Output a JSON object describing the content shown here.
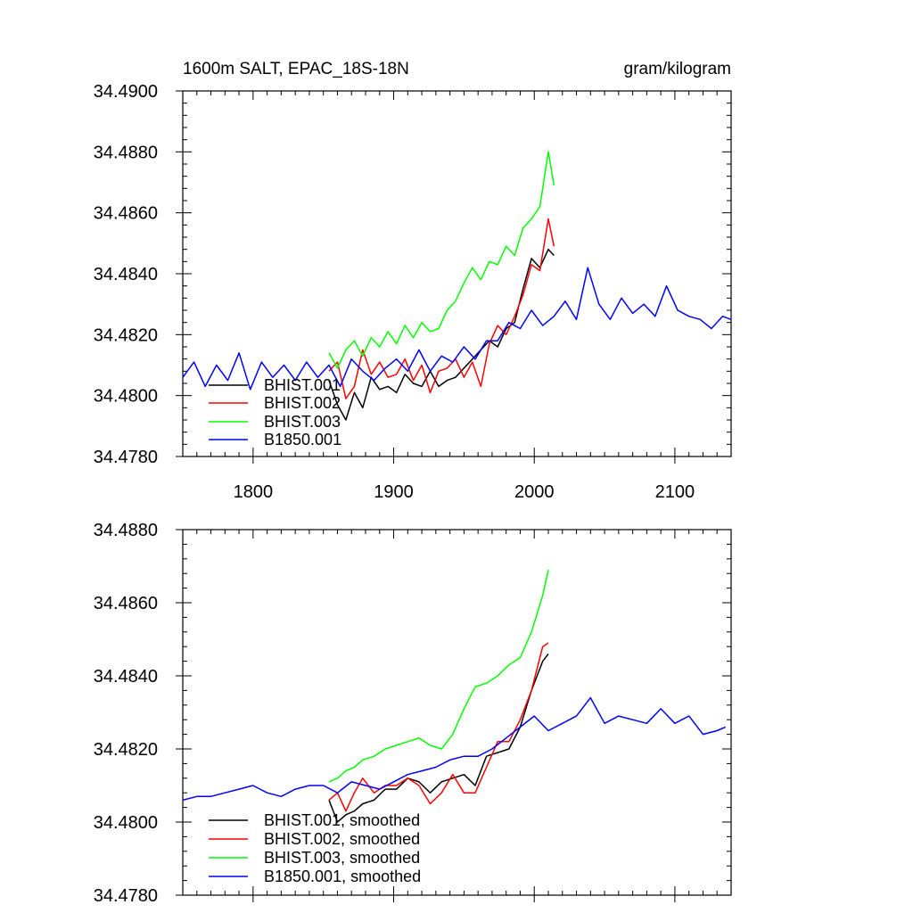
{
  "chart_data": [
    {
      "type": "line",
      "title": "1600m SALT, EPAC_18S-18N",
      "units": "gram/kilogram",
      "xlim": [
        1750,
        2140
      ],
      "ylim": [
        34.478,
        34.49
      ],
      "x_ticks": [
        1800,
        1900,
        2000,
        2100
      ],
      "x_tick_labels": [
        "1800",
        "1900",
        "2000",
        "2100"
      ],
      "y_ticks": [
        34.478,
        34.48,
        34.482,
        34.484,
        34.486,
        34.488,
        34.49
      ],
      "y_tick_labels": [
        "34.4780",
        "34.4800",
        "34.4820",
        "34.4840",
        "34.4860",
        "34.4880",
        "34.4900"
      ],
      "legend_position": "bottom-left",
      "series": [
        {
          "name": "BHIST.001",
          "color": "#000000",
          "x": [
            1854,
            1860,
            1866,
            1872,
            1878,
            1884,
            1890,
            1896,
            1902,
            1908,
            1914,
            1920,
            1926,
            1932,
            1938,
            1944,
            1950,
            1956,
            1962,
            1968,
            1974,
            1980,
            1986,
            1992,
            1998,
            2004,
            2010,
            2014
          ],
          "y": [
            34.4805,
            34.4797,
            34.4792,
            34.4801,
            34.4796,
            34.4806,
            34.4802,
            34.4803,
            34.4801,
            34.4807,
            34.4804,
            34.4803,
            34.4808,
            34.4803,
            34.4805,
            34.4806,
            34.4809,
            34.4812,
            34.4815,
            34.4818,
            34.4816,
            34.4822,
            34.4824,
            34.4835,
            34.4845,
            34.4842,
            34.4848,
            34.4846
          ]
        },
        {
          "name": "BHIST.002",
          "color": "#ff0000",
          "x": [
            1854,
            1860,
            1866,
            1872,
            1878,
            1884,
            1890,
            1896,
            1902,
            1908,
            1914,
            1920,
            1926,
            1932,
            1938,
            1944,
            1950,
            1956,
            1962,
            1968,
            1974,
            1980,
            1986,
            1992,
            1998,
            2004,
            2010,
            2014
          ],
          "y": [
            34.4808,
            34.4811,
            34.4799,
            34.4803,
            34.4815,
            34.4807,
            34.4811,
            34.4806,
            34.4807,
            34.4812,
            34.4805,
            34.481,
            34.4801,
            34.4808,
            34.4809,
            34.4812,
            34.4806,
            34.4811,
            34.4803,
            34.4817,
            34.4823,
            34.482,
            34.4826,
            34.4833,
            34.4843,
            34.4841,
            34.4858,
            34.4849
          ]
        },
        {
          "name": "BHIST.003",
          "color": "#00ff00",
          "x": [
            1854,
            1860,
            1866,
            1872,
            1878,
            1884,
            1890,
            1896,
            1902,
            1908,
            1914,
            1920,
            1926,
            1932,
            1938,
            1944,
            1950,
            1956,
            1962,
            1968,
            1974,
            1980,
            1986,
            1992,
            1998,
            2004,
            2010,
            2014
          ],
          "y": [
            34.4814,
            34.4809,
            34.4815,
            34.4818,
            34.4813,
            34.4819,
            34.4816,
            34.4821,
            34.4817,
            34.4823,
            34.4819,
            34.4824,
            34.4821,
            34.4822,
            34.4828,
            34.4831,
            34.4837,
            34.4842,
            34.4838,
            34.4844,
            34.4843,
            34.4849,
            34.4846,
            34.4855,
            34.4858,
            34.4862,
            34.488,
            34.4869
          ]
        },
        {
          "name": "B1850.001",
          "color": "#0000ff",
          "x": [
            1750,
            1758,
            1766,
            1774,
            1782,
            1790,
            1798,
            1806,
            1814,
            1822,
            1830,
            1838,
            1846,
            1854,
            1862,
            1870,
            1878,
            1886,
            1894,
            1902,
            1910,
            1918,
            1926,
            1934,
            1942,
            1950,
            1958,
            1966,
            1974,
            1982,
            1990,
            1998,
            2006,
            2014,
            2022,
            2030,
            2038,
            2046,
            2054,
            2062,
            2070,
            2078,
            2086,
            2094,
            2102,
            2110,
            2118,
            2126,
            2134,
            2140
          ],
          "y": [
            34.4806,
            34.4811,
            34.4803,
            34.481,
            34.4805,
            34.4814,
            34.4802,
            34.4811,
            34.4806,
            34.481,
            34.4805,
            34.4811,
            34.4806,
            34.481,
            34.4803,
            34.4812,
            34.4808,
            34.4805,
            34.4809,
            34.4812,
            34.4808,
            34.4815,
            34.4808,
            34.4813,
            34.4811,
            34.4816,
            34.4812,
            34.4818,
            34.4818,
            34.4824,
            34.4822,
            34.4828,
            34.4823,
            34.4826,
            34.4831,
            34.4825,
            34.4842,
            34.483,
            34.4825,
            34.4832,
            34.4827,
            34.483,
            34.4826,
            34.4836,
            34.4828,
            34.4826,
            34.4825,
            34.4822,
            34.4826,
            34.4825
          ]
        }
      ]
    },
    {
      "type": "line",
      "xlim": [
        1750,
        2140
      ],
      "ylim": [
        34.478,
        34.488
      ],
      "x_ticks": [
        1800,
        1900,
        2000,
        2100
      ],
      "y_ticks": [
        34.478,
        34.48,
        34.482,
        34.484,
        34.486,
        34.488
      ],
      "y_tick_labels": [
        "34.4780",
        "34.4800",
        "34.4820",
        "34.4840",
        "34.4860",
        "34.4880"
      ],
      "legend_position": "bottom-left",
      "series": [
        {
          "name": "BHIST.001, smoothed",
          "color": "#000000",
          "x": [
            1854,
            1860,
            1866,
            1872,
            1878,
            1886,
            1894,
            1902,
            1910,
            1918,
            1926,
            1934,
            1942,
            1950,
            1958,
            1966,
            1974,
            1982,
            1990,
            1998,
            2006,
            2010
          ],
          "y": [
            34.4806,
            34.48,
            34.4802,
            34.4803,
            34.4805,
            34.4806,
            34.4809,
            34.4809,
            34.4812,
            34.4811,
            34.4808,
            34.4811,
            34.4812,
            34.4813,
            34.481,
            34.4818,
            34.4819,
            34.482,
            34.4826,
            34.4836,
            34.4844,
            34.4846
          ]
        },
        {
          "name": "BHIST.002, smoothed",
          "color": "#ff0000",
          "x": [
            1854,
            1860,
            1866,
            1872,
            1878,
            1886,
            1894,
            1902,
            1910,
            1918,
            1926,
            1934,
            1942,
            1950,
            1958,
            1966,
            1974,
            1982,
            1990,
            1998,
            2006,
            2010
          ],
          "y": [
            34.4806,
            34.4808,
            34.4803,
            34.4808,
            34.4812,
            34.4808,
            34.481,
            34.481,
            34.4812,
            34.481,
            34.4805,
            34.4808,
            34.4813,
            34.4808,
            34.4808,
            34.4815,
            34.4822,
            34.4822,
            34.4828,
            34.4836,
            34.4848,
            34.4849
          ]
        },
        {
          "name": "BHIST.003, smoothed",
          "color": "#00ff00",
          "x": [
            1854,
            1860,
            1866,
            1872,
            1878,
            1886,
            1894,
            1902,
            1910,
            1918,
            1926,
            1934,
            1942,
            1950,
            1958,
            1966,
            1974,
            1982,
            1990,
            1998,
            2006,
            2010
          ],
          "y": [
            34.4811,
            34.4812,
            34.4814,
            34.4815,
            34.4817,
            34.4818,
            34.482,
            34.4821,
            34.4822,
            34.4823,
            34.4821,
            34.482,
            34.4824,
            34.4831,
            34.4837,
            34.4838,
            34.484,
            34.4843,
            34.4845,
            34.4852,
            34.4862,
            34.4869
          ]
        },
        {
          "name": "B1850.001, smoothed",
          "color": "#0000ff",
          "x": [
            1750,
            1760,
            1770,
            1780,
            1790,
            1800,
            1810,
            1820,
            1830,
            1840,
            1850,
            1860,
            1870,
            1880,
            1890,
            1900,
            1910,
            1920,
            1930,
            1940,
            1950,
            1960,
            1970,
            1980,
            1990,
            2000,
            2010,
            2020,
            2030,
            2040,
            2050,
            2060,
            2070,
            2080,
            2090,
            2100,
            2110,
            2120,
            2130,
            2136
          ],
          "y": [
            34.4806,
            34.4807,
            34.4807,
            34.4808,
            34.4809,
            34.481,
            34.4808,
            34.4807,
            34.4809,
            34.481,
            34.481,
            34.4808,
            34.4811,
            34.481,
            34.4809,
            34.4811,
            34.4813,
            34.4814,
            34.4815,
            34.4817,
            34.4818,
            34.4818,
            34.482,
            34.4823,
            34.4826,
            34.4829,
            34.4825,
            34.4827,
            34.4829,
            34.4834,
            34.4827,
            34.4829,
            34.4828,
            34.4827,
            34.4831,
            34.4827,
            34.4829,
            34.4824,
            34.4825,
            34.4826
          ]
        }
      ]
    }
  ]
}
